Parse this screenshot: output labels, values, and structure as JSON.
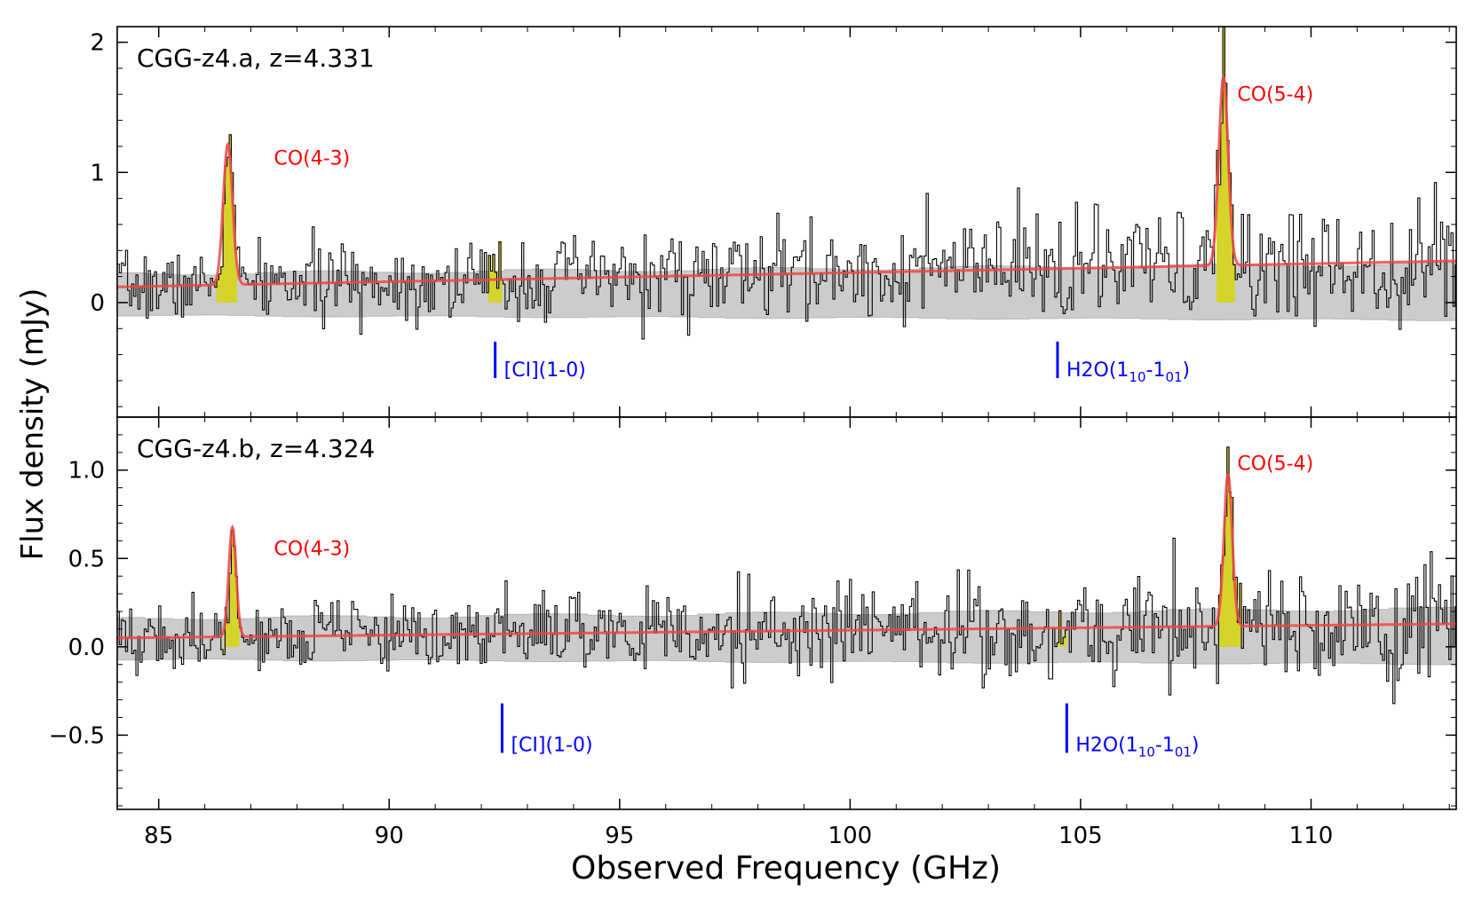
{
  "figure": {
    "xlabel": "Observed Frequency (GHz)",
    "ylabel": "Flux density (mJy)"
  },
  "colors": {
    "spectrum": "#000000",
    "fit": "#ee4444",
    "line_fill": "#d4d42a",
    "noise_band": "#cccccc",
    "line_label": "#ff0000",
    "marker": "#0000ff"
  },
  "chart_data": [
    {
      "type": "line",
      "title": "CGG-z4.a, z=4.331",
      "xlabel": "",
      "ylabel": "Flux density (mJy)",
      "xlim": [
        84.1,
        113.15
      ],
      "ylim": [
        -0.88,
        2.12
      ],
      "yticks": [
        0,
        1,
        2
      ],
      "ytick_labels": [
        "0",
        "1",
        "2"
      ],
      "xticks": [
        85,
        90,
        95,
        100,
        105,
        110
      ],
      "xtick_labels": [],
      "continuum": {
        "x": [
          84.1,
          113.15
        ],
        "y": [
          0.12,
          0.32
        ]
      },
      "noise_rms": 0.22,
      "lines": [
        {
          "name": "CO(4-3)",
          "center": 86.5,
          "amplitude": 1.08,
          "sigma": 0.1,
          "fill_range": [
            86.25,
            86.7
          ]
        },
        {
          "name": "CO(5-4)",
          "center": 108.1,
          "amplitude": 1.45,
          "sigma": 0.1,
          "fill_range": [
            107.95,
            108.35
          ]
        },
        {
          "name": "[CI](1-0)",
          "center": 92.3,
          "amplitude": 0.0,
          "sigma": 0.08,
          "fill_range": [
            92.15,
            92.45
          ]
        }
      ],
      "line_labels": [
        {
          "text": "CO(4-3)",
          "x": 87.5,
          "y": 1.06
        },
        {
          "text": "CO(5-4)",
          "x": 108.4,
          "y": 1.55
        }
      ],
      "markers": [
        {
          "label": "[CI](1-0)",
          "x": 92.3,
          "y": [
            -0.3,
            -0.58
          ]
        },
        {
          "label": "H2O(110-101)",
          "x": 104.5,
          "y": [
            -0.3,
            -0.58
          ]
        }
      ],
      "marker_label_parts": [
        {
          "main": "[CI](1-0)"
        },
        {
          "pre": "H2O(1",
          "sub1": "10",
          "mid": "-1",
          "sub2": "01",
          "post": ")"
        }
      ],
      "seed": 7
    },
    {
      "type": "line",
      "title": "CGG-z4.b, z=4.324",
      "xlabel": "Observed Frequency (GHz)",
      "ylabel": "",
      "xlim": [
        84.1,
        113.15
      ],
      "ylim": [
        -0.92,
        1.3
      ],
      "yticks": [
        -0.5,
        0.0,
        0.5,
        1.0
      ],
      "ytick_labels": [
        "−0.5",
        "0.0",
        "0.5",
        "1.0"
      ],
      "xticks": [
        85,
        90,
        95,
        100,
        105,
        110
      ],
      "xtick_labels": [
        "85",
        "90",
        "95",
        "100",
        "105",
        "110"
      ],
      "continuum": {
        "x": [
          84.1,
          113.15
        ],
        "y": [
          0.05,
          0.13
        ]
      },
      "noise_rms": 0.16,
      "lines": [
        {
          "name": "CO(4-3)",
          "center": 86.6,
          "amplitude": 0.62,
          "sigma": 0.08,
          "fill_range": [
            86.4,
            86.75
          ]
        },
        {
          "name": "CO(5-4)",
          "center": 108.2,
          "amplitude": 0.86,
          "sigma": 0.09,
          "fill_range": [
            108.0,
            108.5
          ]
        },
        {
          "name": "H2O(110-101)",
          "center": 104.6,
          "amplitude": 0.0,
          "sigma": 0.08,
          "fill_range": [
            104.5,
            104.7
          ]
        }
      ],
      "line_labels": [
        {
          "text": "CO(4-3)",
          "x": 87.5,
          "y": 0.52
        },
        {
          "text": "CO(5-4)",
          "x": 108.4,
          "y": 1.0
        }
      ],
      "markers": [
        {
          "label": "[CI](1-0)",
          "x": 92.45,
          "y": [
            -0.32,
            -0.6
          ]
        },
        {
          "label": "H2O(110-101)",
          "x": 104.7,
          "y": [
            -0.32,
            -0.6
          ]
        }
      ],
      "marker_label_parts": [
        {
          "main": "[CI](1-0)"
        },
        {
          "pre": "H2O(1",
          "sub1": "10",
          "mid": "-1",
          "sub2": "01",
          "post": ")"
        }
      ],
      "seed": 19
    }
  ]
}
